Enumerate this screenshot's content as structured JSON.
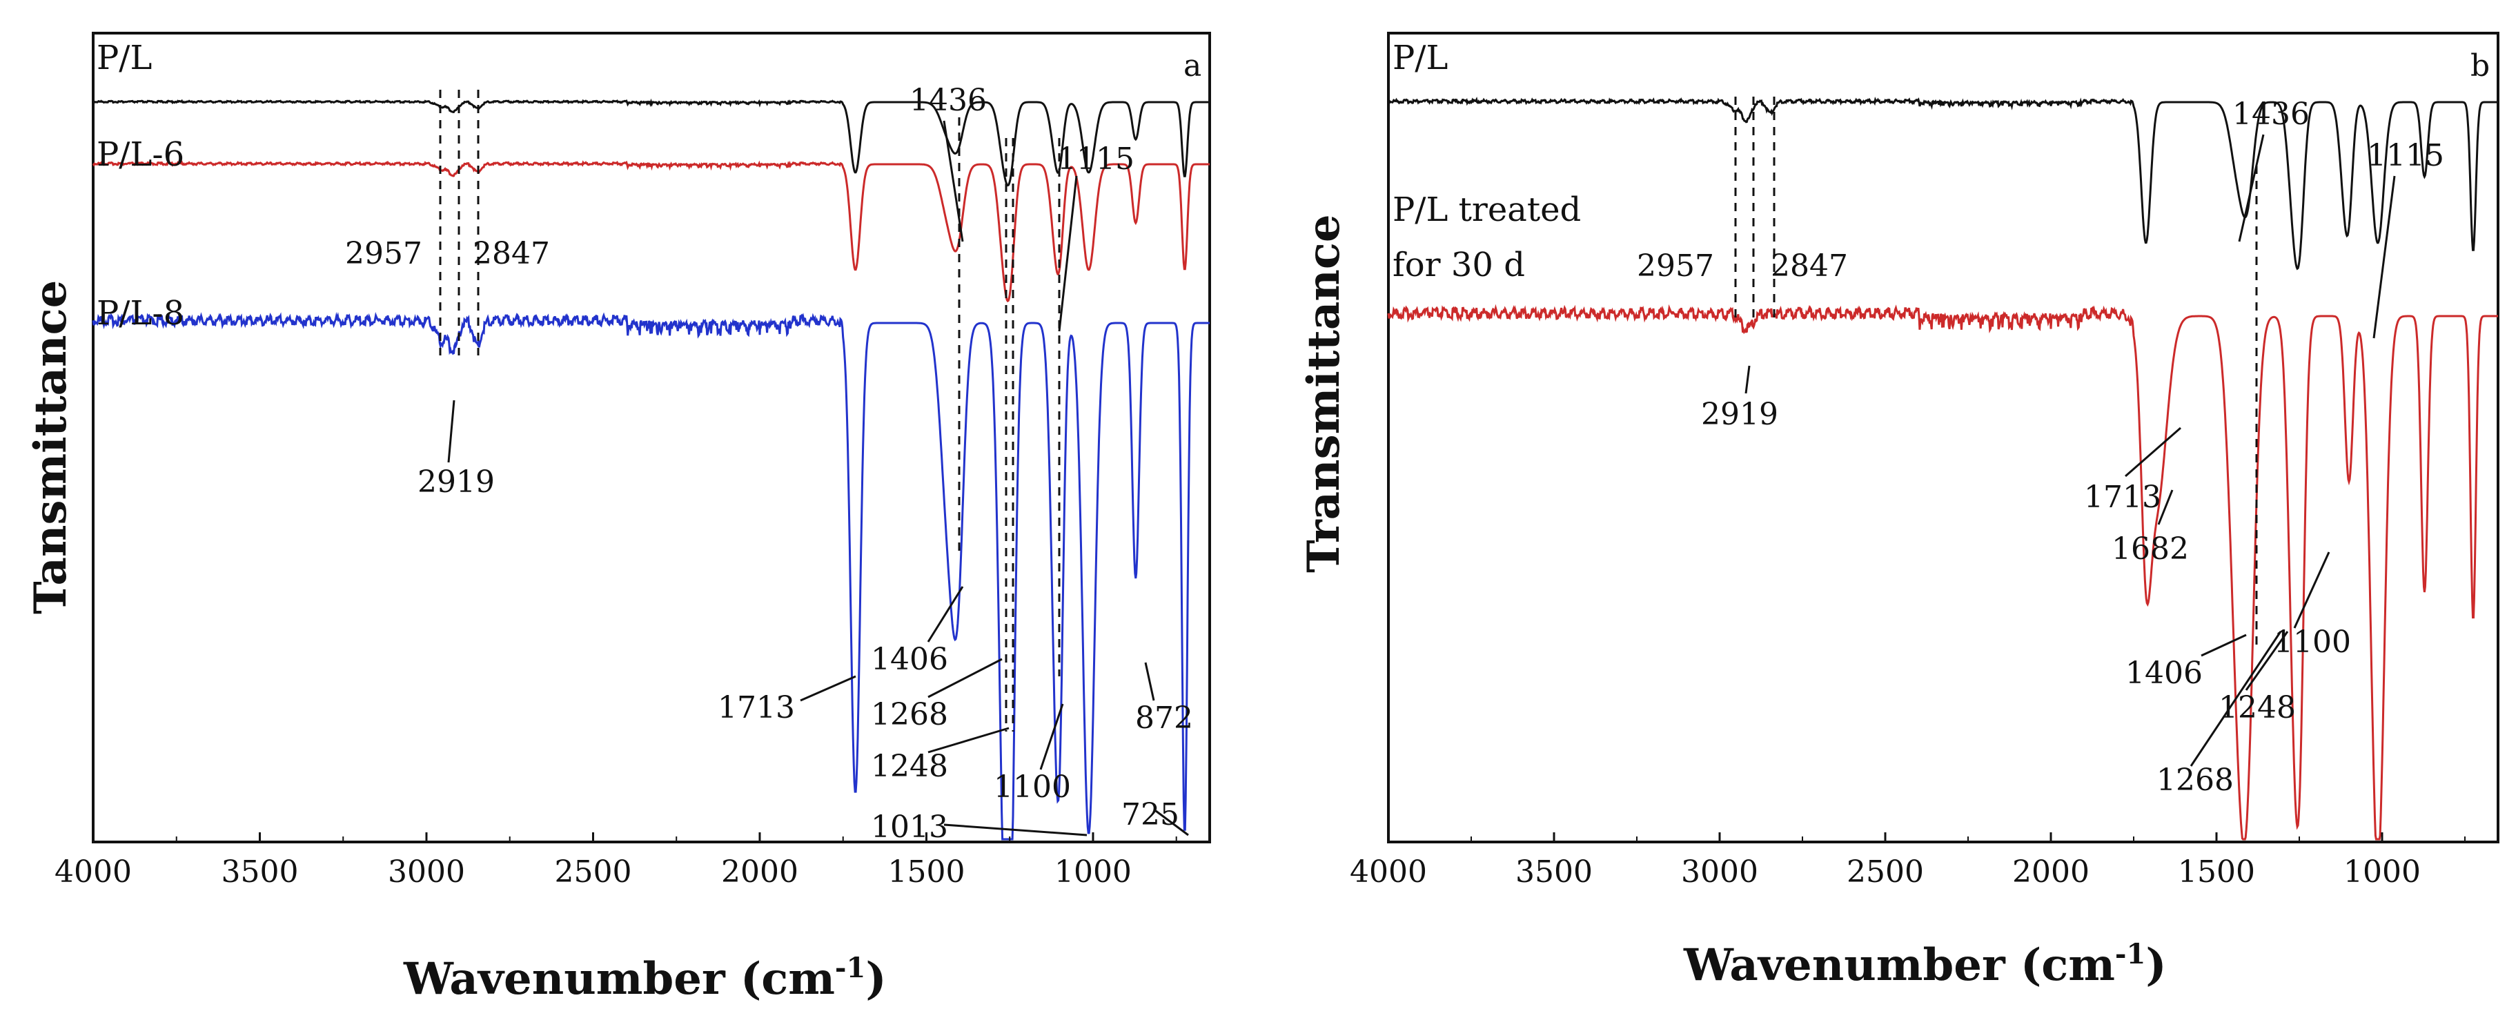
{
  "colors": {
    "black": "#111111",
    "red": "#cc2a2a",
    "blue": "#2233cc"
  },
  "chart_data": [
    {
      "type": "line",
      "panel_label": "a",
      "xlabel": "Wavenumber (cm",
      "xlabel_sup": "-1",
      "xlabel_close": ")",
      "ylabel": "Tansmittance",
      "xlim": [
        4000,
        650
      ],
      "reversed_x": true,
      "xticks": [
        4000,
        3500,
        3000,
        2500,
        2000,
        1500,
        1000
      ],
      "xtick_labels": [
        "4000",
        "3500",
        "3000",
        "2500",
        "2000",
        "1500",
        "1000"
      ],
      "series": [
        {
          "name": "P/L",
          "color": "#111111",
          "baseline": 0.9,
          "scale": 0.28,
          "peaks": [
            [
              2957,
              0.06,
              14
            ],
            [
              2919,
              0.12,
              14
            ],
            [
              2847,
              0.08,
              12
            ],
            [
              1713,
              0.85,
              14
            ],
            [
              1436,
              0.35,
              22
            ],
            [
              1406,
              0.45,
              18
            ],
            [
              1268,
              0.6,
              16
            ],
            [
              1248,
              0.65,
              14
            ],
            [
              1115,
              0.45,
              14
            ],
            [
              1100,
              0.55,
              12
            ],
            [
              1013,
              0.85,
              18
            ],
            [
              872,
              0.45,
              10
            ],
            [
              725,
              0.9,
              8
            ]
          ]
        },
        {
          "name": "P/L-6",
          "color": "#cc2a2a",
          "baseline": 0.78,
          "scale": 0.33,
          "peaks": [
            [
              2957,
              0.05,
              14
            ],
            [
              2919,
              0.1,
              14
            ],
            [
              2847,
              0.07,
              12
            ],
            [
              1713,
              0.9,
              14
            ],
            [
              1436,
              0.4,
              22
            ],
            [
              1406,
              0.55,
              18
            ],
            [
              1268,
              0.7,
              16
            ],
            [
              1248,
              0.75,
              14
            ],
            [
              1115,
              0.5,
              14
            ],
            [
              1100,
              0.6,
              12
            ],
            [
              1013,
              0.9,
              18
            ],
            [
              872,
              0.5,
              10
            ],
            [
              725,
              0.9,
              8
            ]
          ]
        },
        {
          "name": "P/L-8",
          "color": "#2233cc",
          "baseline": 0.55,
          "scale": 0.5,
          "peaks": [
            [
              2957,
              0.04,
              14
            ],
            [
              2919,
              0.06,
              14
            ],
            [
              2847,
              0.05,
              12
            ],
            [
              1713,
              0.92,
              14
            ],
            [
              1436,
              0.35,
              22
            ],
            [
              1406,
              0.45,
              18
            ],
            [
              1268,
              0.85,
              16
            ],
            [
              1248,
              0.92,
              14
            ],
            [
              1115,
              0.5,
              14
            ],
            [
              1100,
              0.6,
              12
            ],
            [
              1013,
              1.0,
              18
            ],
            [
              872,
              0.5,
              10
            ],
            [
              725,
              1.0,
              8
            ]
          ]
        }
      ],
      "annotations": [
        "2957",
        "2847",
        "2919",
        "1436",
        "1115",
        "1406",
        "1713",
        "1268",
        "1248",
        "1100",
        "872",
        "1013",
        "725"
      ]
    },
    {
      "type": "line",
      "panel_label": "b",
      "xlabel": "Wavenumber (cm",
      "xlabel_sup": "-1",
      "xlabel_close": ")",
      "ylabel": "Transmittance",
      "xlim": [
        4000,
        650
      ],
      "reversed_x": true,
      "xticks": [
        4000,
        3500,
        3000,
        2500,
        2000,
        1500,
        1000
      ],
      "xtick_labels": [
        "4000",
        "3500",
        "3000",
        "2500",
        "2000",
        "1500",
        "1000"
      ],
      "series": [
        {
          "name": "P/L",
          "color": "#111111",
          "baseline": 0.9,
          "scale": 0.42,
          "peaks": [
            [
              2957,
              0.05,
              14
            ],
            [
              2919,
              0.12,
              14
            ],
            [
              2847,
              0.07,
              12
            ],
            [
              1713,
              0.85,
              14
            ],
            [
              1436,
              0.4,
              22
            ],
            [
              1406,
              0.5,
              18
            ],
            [
              1268,
              0.6,
              16
            ],
            [
              1248,
              0.65,
              14
            ],
            [
              1115,
              0.45,
              14
            ],
            [
              1100,
              0.5,
              12
            ],
            [
              1013,
              0.85,
              18
            ],
            [
              872,
              0.45,
              10
            ],
            [
              725,
              0.9,
              8
            ]
          ]
        },
        {
          "name": "P/L treated for 30 d",
          "name_line1": "P/L treated",
          "name_line2": "for 30 d",
          "color": "#cc2a2a",
          "baseline": 0.6,
          "scale": 0.6,
          "peaks": [
            [
              2919,
              0.03,
              18
            ],
            [
              1713,
              0.3,
              14
            ],
            [
              1682,
              0.35,
              30
            ],
            [
              1436,
              0.55,
              25
            ],
            [
              1406,
              0.62,
              22
            ],
            [
              1268,
              0.55,
              16
            ],
            [
              1248,
              0.6,
              14
            ],
            [
              1100,
              0.3,
              12
            ],
            [
              1013,
              1.0,
              20
            ],
            [
              872,
              0.5,
              10
            ],
            [
              725,
              0.55,
              8
            ]
          ]
        }
      ],
      "annotations": [
        "1436",
        "1115",
        "2957",
        "2847",
        "2919",
        "1713",
        "1682",
        "1406",
        "1100",
        "1248",
        "1268"
      ]
    }
  ]
}
